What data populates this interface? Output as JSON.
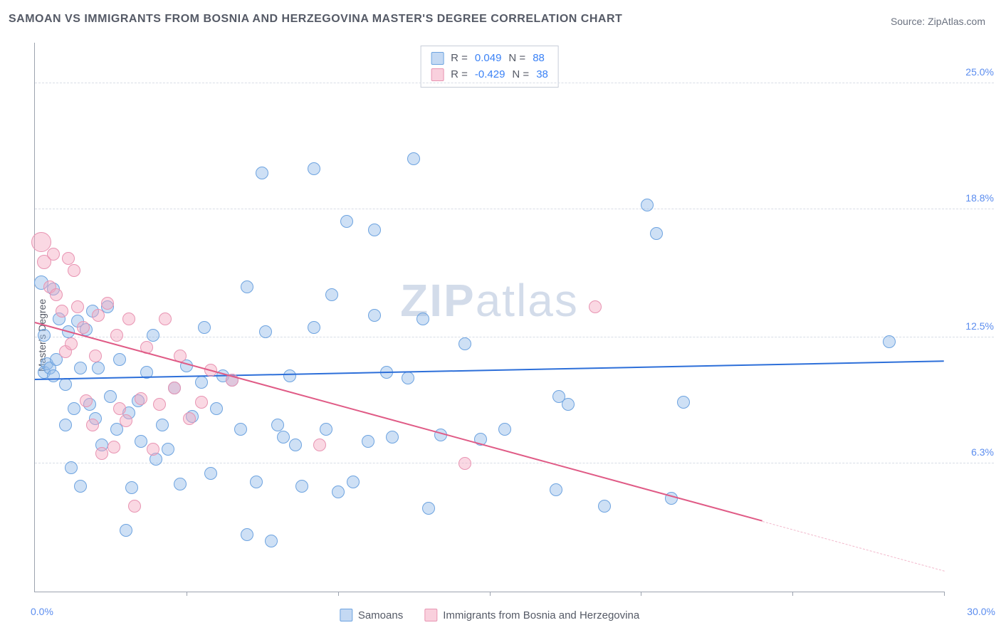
{
  "title": "SAMOAN VS IMMIGRANTS FROM BOSNIA AND HERZEGOVINA MASTER'S DEGREE CORRELATION CHART",
  "source_prefix": "Source: ",
  "source_name": "ZipAtlas.com",
  "y_axis_label": "Master's Degree",
  "watermark_bold": "ZIP",
  "watermark_light": "atlas",
  "chart": {
    "type": "scatter",
    "xlim": [
      0,
      30
    ],
    "ylim": [
      0,
      27
    ],
    "x_tick_positions": [
      0,
      5,
      10,
      15,
      20,
      25,
      30
    ],
    "x_min_label": "0.0%",
    "x_max_label": "30.0%",
    "y_gridlines": [
      6.3,
      12.5,
      18.8,
      25.0
    ],
    "y_tick_labels": [
      "6.3%",
      "12.5%",
      "18.8%",
      "25.0%"
    ],
    "background_color": "#ffffff",
    "grid_color": "#d8dde6",
    "axis_color": "#9ca3af",
    "series": [
      {
        "key": "samoans",
        "label": "Samoans",
        "color_fill": "rgba(147,186,233,0.45)",
        "color_stroke": "#6da3e0",
        "trend_color": "#2d6fd9",
        "R": "0.049",
        "N": "88",
        "trend": {
          "x1": 0,
          "y1": 10.4,
          "x2": 30,
          "y2": 11.3,
          "dash_from_x": null
        },
        "points": [
          {
            "x": 0.2,
            "y": 15.2,
            "r": 10
          },
          {
            "x": 0.3,
            "y": 10.8,
            "r": 9
          },
          {
            "x": 0.3,
            "y": 12.6,
            "r": 9
          },
          {
            "x": 0.4,
            "y": 11.2,
            "r": 9
          },
          {
            "x": 0.5,
            "y": 11.0,
            "r": 9
          },
          {
            "x": 0.6,
            "y": 14.9,
            "r": 9
          },
          {
            "x": 0.6,
            "y": 10.6,
            "r": 9
          },
          {
            "x": 0.7,
            "y": 11.4,
            "r": 9
          },
          {
            "x": 0.8,
            "y": 13.4,
            "r": 9
          },
          {
            "x": 1.0,
            "y": 10.2,
            "r": 9
          },
          {
            "x": 1.0,
            "y": 8.2,
            "r": 9
          },
          {
            "x": 1.1,
            "y": 12.8,
            "r": 9
          },
          {
            "x": 1.2,
            "y": 6.1,
            "r": 9
          },
          {
            "x": 1.3,
            "y": 9.0,
            "r": 9
          },
          {
            "x": 1.4,
            "y": 13.3,
            "r": 9
          },
          {
            "x": 1.5,
            "y": 11.0,
            "r": 9
          },
          {
            "x": 1.5,
            "y": 5.2,
            "r": 9
          },
          {
            "x": 1.7,
            "y": 12.9,
            "r": 9
          },
          {
            "x": 1.8,
            "y": 9.2,
            "r": 9
          },
          {
            "x": 1.9,
            "y": 13.8,
            "r": 9
          },
          {
            "x": 2.0,
            "y": 8.5,
            "r": 9
          },
          {
            "x": 2.1,
            "y": 11.0,
            "r": 9
          },
          {
            "x": 2.2,
            "y": 7.2,
            "r": 9
          },
          {
            "x": 2.4,
            "y": 14.0,
            "r": 9
          },
          {
            "x": 2.5,
            "y": 9.6,
            "r": 9
          },
          {
            "x": 2.7,
            "y": 8.0,
            "r": 9
          },
          {
            "x": 2.8,
            "y": 11.4,
            "r": 9
          },
          {
            "x": 3.0,
            "y": 3.0,
            "r": 9
          },
          {
            "x": 3.1,
            "y": 8.8,
            "r": 9
          },
          {
            "x": 3.2,
            "y": 5.1,
            "r": 9
          },
          {
            "x": 3.4,
            "y": 9.4,
            "r": 9
          },
          {
            "x": 3.5,
            "y": 7.4,
            "r": 9
          },
          {
            "x": 3.7,
            "y": 10.8,
            "r": 9
          },
          {
            "x": 3.9,
            "y": 12.6,
            "r": 9
          },
          {
            "x": 4.0,
            "y": 6.5,
            "r": 9
          },
          {
            "x": 4.2,
            "y": 8.2,
            "r": 9
          },
          {
            "x": 4.4,
            "y": 7.0,
            "r": 9
          },
          {
            "x": 4.6,
            "y": 10.0,
            "r": 9
          },
          {
            "x": 4.8,
            "y": 5.3,
            "r": 9
          },
          {
            "x": 5.0,
            "y": 11.1,
            "r": 9
          },
          {
            "x": 5.2,
            "y": 8.6,
            "r": 9
          },
          {
            "x": 5.5,
            "y": 10.3,
            "r": 9
          },
          {
            "x": 5.6,
            "y": 13.0,
            "r": 9
          },
          {
            "x": 5.8,
            "y": 5.8,
            "r": 9
          },
          {
            "x": 6.0,
            "y": 9.0,
            "r": 9
          },
          {
            "x": 6.2,
            "y": 10.6,
            "r": 9
          },
          {
            "x": 6.5,
            "y": 10.4,
            "r": 9
          },
          {
            "x": 6.8,
            "y": 8.0,
            "r": 9
          },
          {
            "x": 7.0,
            "y": 15.0,
            "r": 9
          },
          {
            "x": 7.0,
            "y": 2.8,
            "r": 9
          },
          {
            "x": 7.3,
            "y": 5.4,
            "r": 9
          },
          {
            "x": 7.5,
            "y": 20.6,
            "r": 9
          },
          {
            "x": 7.6,
            "y": 12.8,
            "r": 9
          },
          {
            "x": 7.8,
            "y": 2.5,
            "r": 9
          },
          {
            "x": 8.0,
            "y": 8.2,
            "r": 9
          },
          {
            "x": 8.2,
            "y": 7.6,
            "r": 9
          },
          {
            "x": 8.4,
            "y": 10.6,
            "r": 9
          },
          {
            "x": 8.6,
            "y": 7.2,
            "r": 9
          },
          {
            "x": 8.8,
            "y": 5.2,
            "r": 9
          },
          {
            "x": 9.2,
            "y": 20.8,
            "r": 9
          },
          {
            "x": 9.2,
            "y": 13.0,
            "r": 9
          },
          {
            "x": 9.6,
            "y": 8.0,
            "r": 9
          },
          {
            "x": 9.8,
            "y": 14.6,
            "r": 9
          },
          {
            "x": 10.0,
            "y": 4.9,
            "r": 9
          },
          {
            "x": 10.3,
            "y": 18.2,
            "r": 9
          },
          {
            "x": 10.5,
            "y": 5.4,
            "r": 9
          },
          {
            "x": 11.0,
            "y": 7.4,
            "r": 9
          },
          {
            "x": 11.2,
            "y": 13.6,
            "r": 9
          },
          {
            "x": 11.2,
            "y": 17.8,
            "r": 9
          },
          {
            "x": 11.6,
            "y": 10.8,
            "r": 9
          },
          {
            "x": 11.8,
            "y": 7.6,
            "r": 9
          },
          {
            "x": 12.3,
            "y": 10.5,
            "r": 9
          },
          {
            "x": 12.5,
            "y": 21.3,
            "r": 9
          },
          {
            "x": 12.8,
            "y": 13.4,
            "r": 9
          },
          {
            "x": 13.0,
            "y": 4.1,
            "r": 9
          },
          {
            "x": 13.4,
            "y": 7.7,
            "r": 9
          },
          {
            "x": 14.2,
            "y": 12.2,
            "r": 9
          },
          {
            "x": 14.7,
            "y": 7.5,
            "r": 9
          },
          {
            "x": 15.5,
            "y": 8.0,
            "r": 9
          },
          {
            "x": 17.2,
            "y": 5.0,
            "r": 9
          },
          {
            "x": 17.3,
            "y": 9.6,
            "r": 9
          },
          {
            "x": 17.6,
            "y": 9.2,
            "r": 9
          },
          {
            "x": 18.8,
            "y": 4.2,
            "r": 9
          },
          {
            "x": 20.2,
            "y": 19.0,
            "r": 9
          },
          {
            "x": 20.5,
            "y": 17.6,
            "r": 9
          },
          {
            "x": 21.0,
            "y": 4.6,
            "r": 9
          },
          {
            "x": 21.4,
            "y": 9.3,
            "r": 9
          },
          {
            "x": 28.2,
            "y": 12.3,
            "r": 9
          }
        ]
      },
      {
        "key": "bosnia",
        "label": "Immigrants from Bosnia and Herzegovina",
        "color_fill": "rgba(244,169,193,0.45)",
        "color_stroke": "#e894b2",
        "trend_color": "#e05b86",
        "R": "-0.429",
        "N": "38",
        "trend": {
          "x1": 0,
          "y1": 13.2,
          "x2": 30,
          "y2": 1.0,
          "dash_from_x": 24
        },
        "points": [
          {
            "x": 0.2,
            "y": 17.2,
            "r": 14
          },
          {
            "x": 0.3,
            "y": 16.2,
            "r": 10
          },
          {
            "x": 0.5,
            "y": 15.0,
            "r": 9
          },
          {
            "x": 0.6,
            "y": 16.6,
            "r": 9
          },
          {
            "x": 0.7,
            "y": 14.6,
            "r": 9
          },
          {
            "x": 0.9,
            "y": 13.8,
            "r": 9
          },
          {
            "x": 1.0,
            "y": 11.8,
            "r": 9
          },
          {
            "x": 1.1,
            "y": 16.4,
            "r": 9
          },
          {
            "x": 1.2,
            "y": 12.2,
            "r": 9
          },
          {
            "x": 1.3,
            "y": 15.8,
            "r": 9
          },
          {
            "x": 1.4,
            "y": 14.0,
            "r": 9
          },
          {
            "x": 1.6,
            "y": 13.0,
            "r": 9
          },
          {
            "x": 1.7,
            "y": 9.4,
            "r": 9
          },
          {
            "x": 1.9,
            "y": 8.2,
            "r": 9
          },
          {
            "x": 2.0,
            "y": 11.6,
            "r": 9
          },
          {
            "x": 2.1,
            "y": 13.6,
            "r": 9
          },
          {
            "x": 2.2,
            "y": 6.8,
            "r": 9
          },
          {
            "x": 2.4,
            "y": 14.2,
            "r": 9
          },
          {
            "x": 2.6,
            "y": 7.1,
            "r": 9
          },
          {
            "x": 2.7,
            "y": 12.6,
            "r": 9
          },
          {
            "x": 2.8,
            "y": 9.0,
            "r": 9
          },
          {
            "x": 3.0,
            "y": 8.4,
            "r": 9
          },
          {
            "x": 3.1,
            "y": 13.4,
            "r": 9
          },
          {
            "x": 3.3,
            "y": 4.2,
            "r": 9
          },
          {
            "x": 3.5,
            "y": 9.5,
            "r": 9
          },
          {
            "x": 3.7,
            "y": 12.0,
            "r": 9
          },
          {
            "x": 3.9,
            "y": 7.0,
            "r": 9
          },
          {
            "x": 4.1,
            "y": 9.2,
            "r": 9
          },
          {
            "x": 4.3,
            "y": 13.4,
            "r": 9
          },
          {
            "x": 4.6,
            "y": 10.0,
            "r": 9
          },
          {
            "x": 4.8,
            "y": 11.6,
            "r": 9
          },
          {
            "x": 5.1,
            "y": 8.5,
            "r": 9
          },
          {
            "x": 5.5,
            "y": 9.3,
            "r": 9
          },
          {
            "x": 5.8,
            "y": 10.9,
            "r": 9
          },
          {
            "x": 6.5,
            "y": 10.4,
            "r": 9
          },
          {
            "x": 9.4,
            "y": 7.2,
            "r": 9
          },
          {
            "x": 14.2,
            "y": 6.3,
            "r": 9
          },
          {
            "x": 18.5,
            "y": 14.0,
            "r": 9
          }
        ]
      }
    ]
  },
  "stats_legend": {
    "r_label": "R =",
    "n_label": "N ="
  },
  "bottom_legend_labels": [
    "Samoans",
    "Immigrants from Bosnia and Herzegovina"
  ]
}
